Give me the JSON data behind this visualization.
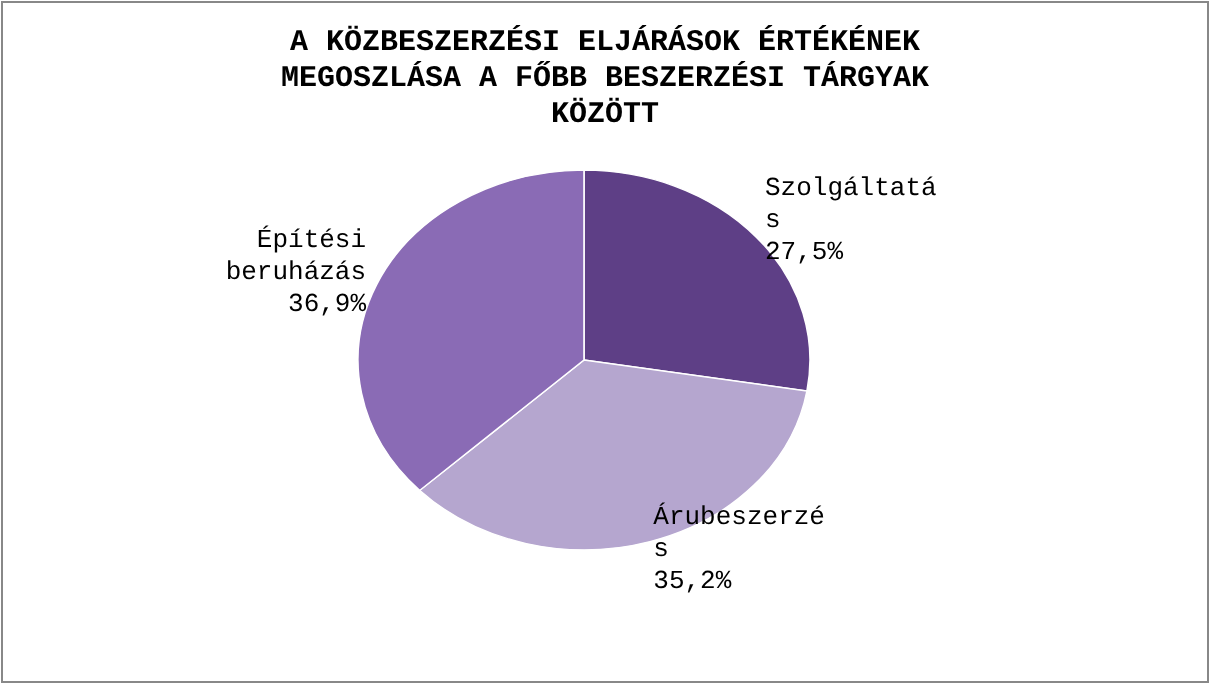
{
  "chart_data": {
    "type": "pie",
    "title": "A KÖZBESZERZÉSI ELJÁRÁSOK ÉRTÉKÉNEK MEGOSZLÁSA A FŐBB BESZERZÉSI TÁRGYAK KÖZÖTT",
    "categories": [
      "Szolgáltatás",
      "Árubeszerzés",
      "Építési beruházás"
    ],
    "values": [
      27.5,
      35.2,
      36.9
    ],
    "value_labels": [
      "27,5%",
      "35,2%",
      "36,9%"
    ],
    "colors": [
      "#5e3f86",
      "#b5a6cf",
      "#8a6bb5"
    ]
  }
}
